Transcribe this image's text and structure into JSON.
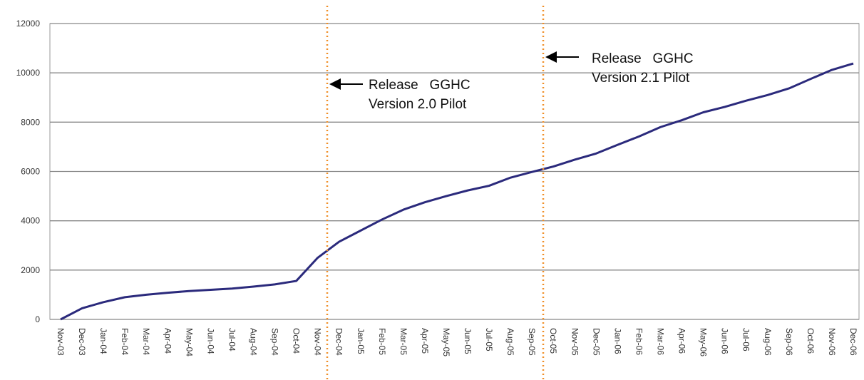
{
  "chart_data": {
    "type": "line",
    "categories": [
      "Nov-03",
      "Dec-03",
      "Jan-04",
      "Feb-04",
      "Mar-04",
      "Apr-04",
      "May-04",
      "Jun-04",
      "Jul-04",
      "Aug-04",
      "Sep-04",
      "Oct-04",
      "Nov-04",
      "Dec-04",
      "Jan-05",
      "Feb-05",
      "Mar-05",
      "Apr-05",
      "May-05",
      "Jun-05",
      "Jul-05",
      "Aug-05",
      "Sep-05",
      "Oct-05",
      "Nov-05",
      "Dec-05",
      "Jan-06",
      "Feb-06",
      "Mar-06",
      "Apr-06",
      "May-06",
      "Jun-06",
      "Jul-06",
      "Aug-06",
      "Sep-06",
      "Oct-06",
      "Nov-06",
      "Dec-06"
    ],
    "series": [
      {
        "color": "#2b2a7c",
        "values": [
          0,
          450,
          700,
          900,
          1000,
          1080,
          1150,
          1200,
          1250,
          1330,
          1420,
          1560,
          2500,
          3150,
          3600,
          4050,
          4450,
          4750,
          5000,
          5230,
          5420,
          5750,
          5980,
          6200,
          6480,
          6730,
          7080,
          7420,
          7800,
          8080,
          8400,
          8620,
          8870,
          9100,
          9370,
          9750,
          10120,
          10380
        ]
      }
    ],
    "ylim": [
      0,
      12000
    ],
    "yticks": [
      0,
      2000,
      4000,
      6000,
      8000,
      10000,
      12000
    ],
    "grid": true,
    "annotations": [
      {
        "lines": [
          "Release   GGHC",
          "Version 2.0 Pilot"
        ]
      },
      {
        "lines": [
          "Release   GGHC",
          "Version 2.1 Pilot"
        ]
      }
    ]
  }
}
